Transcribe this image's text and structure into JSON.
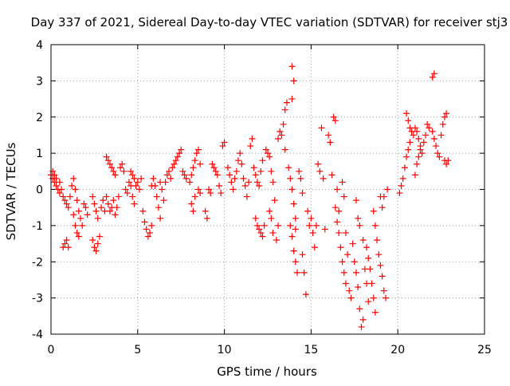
{
  "chart_data": {
    "type": "scatter",
    "title": "Day 337 of 2021, Sidereal Day-to-day VTEC variation (SDTVAR) for receiver stj3",
    "xlabel": "GPS time / hours",
    "ylabel": "SDTVAR / TECUs",
    "xlim": [
      0,
      25
    ],
    "ylim": [
      -4,
      4
    ],
    "xticks": [
      0,
      5,
      10,
      15,
      20,
      25
    ],
    "yticks": [
      -4,
      -3,
      -2,
      -1,
      0,
      1,
      2,
      3,
      4
    ],
    "grid": true,
    "marker": "+",
    "color": "#ff0000",
    "series": [
      {
        "name": "SDTVAR",
        "points": [
          [
            0.0,
            0.4
          ],
          [
            0.1,
            0.3
          ],
          [
            0.2,
            0.2
          ],
          [
            0.3,
            0.1
          ],
          [
            0.4,
            0.0
          ],
          [
            0.5,
            -0.1
          ],
          [
            0.6,
            0.0
          ],
          [
            0.7,
            -0.2
          ],
          [
            0.1,
            0.5
          ],
          [
            0.2,
            0.4
          ],
          [
            0.3,
            0.3
          ],
          [
            0.5,
            0.2
          ],
          [
            0.8,
            -0.3
          ],
          [
            0.9,
            -0.4
          ],
          [
            1.0,
            -0.5
          ],
          [
            0.7,
            -1.6
          ],
          [
            0.8,
            -1.5
          ],
          [
            0.9,
            -1.4
          ],
          [
            1.0,
            -1.6
          ],
          [
            1.1,
            -0.2
          ],
          [
            1.2,
            0.1
          ],
          [
            1.3,
            0.3
          ],
          [
            1.4,
            0.0
          ],
          [
            1.5,
            -0.3
          ],
          [
            1.6,
            -0.6
          ],
          [
            1.7,
            -0.8
          ],
          [
            1.8,
            -1.0
          ],
          [
            1.3,
            -0.7
          ],
          [
            1.4,
            -1.0
          ],
          [
            1.5,
            -1.2
          ],
          [
            1.6,
            -1.3
          ],
          [
            1.9,
            -0.4
          ],
          [
            2.0,
            -0.5
          ],
          [
            2.1,
            -0.7
          ],
          [
            2.4,
            -1.4
          ],
          [
            2.5,
            -1.6
          ],
          [
            2.6,
            -1.7
          ],
          [
            2.7,
            -1.5
          ],
          [
            2.8,
            -1.3
          ],
          [
            2.4,
            -0.2
          ],
          [
            2.5,
            -0.4
          ],
          [
            2.6,
            -0.6
          ],
          [
            2.7,
            -0.8
          ],
          [
            2.9,
            -0.5
          ],
          [
            3.0,
            -0.3
          ],
          [
            3.1,
            -0.6
          ],
          [
            3.2,
            -0.2
          ],
          [
            3.3,
            -0.4
          ],
          [
            3.4,
            -0.6
          ],
          [
            3.5,
            -0.5
          ],
          [
            3.6,
            -0.3
          ],
          [
            3.7,
            -0.7
          ],
          [
            3.8,
            -0.5
          ],
          [
            3.2,
            0.9
          ],
          [
            3.3,
            0.8
          ],
          [
            3.4,
            0.7
          ],
          [
            3.5,
            0.6
          ],
          [
            3.6,
            0.5
          ],
          [
            3.7,
            0.4
          ],
          [
            3.9,
            -0.2
          ],
          [
            4.0,
            0.6
          ],
          [
            4.1,
            0.7
          ],
          [
            4.2,
            0.5
          ],
          [
            4.3,
            0.0
          ],
          [
            4.4,
            -0.1
          ],
          [
            4.5,
            0.2
          ],
          [
            4.6,
            0.1
          ],
          [
            4.7,
            -0.2
          ],
          [
            4.8,
            -0.4
          ],
          [
            4.9,
            0.1
          ],
          [
            4.6,
            0.5
          ],
          [
            4.7,
            0.4
          ],
          [
            4.8,
            0.3
          ],
          [
            5.0,
            0.2
          ],
          [
            5.1,
            0.0
          ],
          [
            5.2,
            0.3
          ],
          [
            5.3,
            -0.6
          ],
          [
            5.4,
            -0.9
          ],
          [
            5.5,
            -1.1
          ],
          [
            5.6,
            -1.3
          ],
          [
            5.7,
            -1.2
          ],
          [
            5.8,
            -1.0
          ],
          [
            5.8,
            0.1
          ],
          [
            5.9,
            0.3
          ],
          [
            6.0,
            0.1
          ],
          [
            6.1,
            -0.2
          ],
          [
            6.2,
            -0.5
          ],
          [
            6.3,
            -0.8
          ],
          [
            6.3,
            0.2
          ],
          [
            6.4,
            0.0
          ],
          [
            6.5,
            -0.3
          ],
          [
            6.6,
            0.2
          ],
          [
            6.7,
            0.4
          ],
          [
            6.8,
            0.5
          ],
          [
            6.9,
            0.3
          ],
          [
            7.0,
            0.6
          ],
          [
            7.1,
            0.7
          ],
          [
            7.2,
            0.8
          ],
          [
            7.3,
            0.9
          ],
          [
            7.4,
            1.0
          ],
          [
            7.5,
            1.1
          ],
          [
            7.6,
            0.5
          ],
          [
            7.7,
            0.4
          ],
          [
            7.8,
            0.3
          ],
          [
            8.0,
            0.2
          ],
          [
            8.1,
            0.4
          ],
          [
            8.2,
            0.6
          ],
          [
            8.3,
            0.8
          ],
          [
            8.4,
            1.0
          ],
          [
            8.5,
            1.1
          ],
          [
            8.6,
            0.7
          ],
          [
            8.1,
            -0.4
          ],
          [
            8.2,
            -0.6
          ],
          [
            8.3,
            -0.2
          ],
          [
            8.5,
            0.0
          ],
          [
            8.6,
            -0.1
          ],
          [
            8.9,
            -0.6
          ],
          [
            9.0,
            -0.8
          ],
          [
            9.1,
            0.0
          ],
          [
            9.2,
            -0.1
          ],
          [
            9.3,
            0.7
          ],
          [
            9.4,
            0.6
          ],
          [
            9.5,
            0.5
          ],
          [
            9.6,
            0.4
          ],
          [
            9.7,
            0.1
          ],
          [
            9.8,
            -0.1
          ],
          [
            9.9,
            1.2
          ],
          [
            10.0,
            1.3
          ],
          [
            10.2,
            0.6
          ],
          [
            10.3,
            0.4
          ],
          [
            10.4,
            0.2
          ],
          [
            10.5,
            0.0
          ],
          [
            10.6,
            0.3
          ],
          [
            10.7,
            0.5
          ],
          [
            10.8,
            0.8
          ],
          [
            10.9,
            1.0
          ],
          [
            11.0,
            0.7
          ],
          [
            11.1,
            0.3
          ],
          [
            11.2,
            0.1
          ],
          [
            11.3,
            -0.2
          ],
          [
            11.4,
            0.2
          ],
          [
            11.5,
            1.2
          ],
          [
            11.6,
            1.4
          ],
          [
            11.7,
            0.6
          ],
          [
            11.8,
            0.4
          ],
          [
            11.9,
            0.2
          ],
          [
            12.0,
            0.1
          ],
          [
            12.1,
            0.5
          ],
          [
            12.2,
            0.8
          ],
          [
            11.8,
            -0.8
          ],
          [
            11.9,
            -1.0
          ],
          [
            12.0,
            -1.1
          ],
          [
            12.1,
            -1.2
          ],
          [
            12.2,
            -1.3
          ],
          [
            12.3,
            -1.0
          ],
          [
            12.4,
            1.1
          ],
          [
            12.5,
            1.0
          ],
          [
            12.6,
            0.9
          ],
          [
            12.7,
            0.5
          ],
          [
            12.8,
            0.2
          ],
          [
            12.9,
            -0.3
          ],
          [
            12.6,
            -0.6
          ],
          [
            12.7,
            -0.8
          ],
          [
            12.8,
            -1.2
          ],
          [
            13.0,
            -1.4
          ],
          [
            13.1,
            -1.0
          ],
          [
            13.1,
            1.4
          ],
          [
            13.2,
            1.6
          ],
          [
            13.3,
            1.5
          ],
          [
            13.4,
            1.8
          ],
          [
            13.5,
            2.2
          ],
          [
            13.6,
            2.4
          ],
          [
            13.5,
            1.1
          ],
          [
            13.7,
            0.6
          ],
          [
            13.8,
            0.3
          ],
          [
            13.9,
            0.0
          ],
          [
            14.0,
            -0.4
          ],
          [
            14.1,
            -0.8
          ],
          [
            13.9,
            3.4
          ],
          [
            14.0,
            3.0
          ],
          [
            13.9,
            2.5
          ],
          [
            13.8,
            -1.0
          ],
          [
            13.9,
            -1.3
          ],
          [
            14.0,
            -1.7
          ],
          [
            14.1,
            -2.0
          ],
          [
            14.2,
            -2.3
          ],
          [
            14.1,
            -1.1
          ],
          [
            14.3,
            0.5
          ],
          [
            14.4,
            0.3
          ],
          [
            14.5,
            -0.1
          ],
          [
            14.5,
            -1.8
          ],
          [
            14.6,
            -2.3
          ],
          [
            14.7,
            -2.9
          ],
          [
            14.8,
            -0.6
          ],
          [
            14.9,
            -1.0
          ],
          [
            15.0,
            -0.8
          ],
          [
            15.1,
            -1.2
          ],
          [
            15.2,
            -1.6
          ],
          [
            15.3,
            -1.0
          ],
          [
            15.4,
            0.7
          ],
          [
            15.5,
            0.5
          ],
          [
            15.6,
            1.7
          ],
          [
            15.7,
            0.3
          ],
          [
            15.8,
            -1.1
          ],
          [
            16.0,
            1.5
          ],
          [
            16.1,
            1.3
          ],
          [
            16.2,
            0.4
          ],
          [
            16.3,
            2.0
          ],
          [
            16.4,
            1.9
          ],
          [
            16.5,
            0.0
          ],
          [
            16.6,
            -0.6
          ],
          [
            16.4,
            -0.5
          ],
          [
            16.5,
            -0.9
          ],
          [
            16.6,
            -1.2
          ],
          [
            16.7,
            -1.6
          ],
          [
            16.8,
            -2.0
          ],
          [
            16.9,
            -2.3
          ],
          [
            17.0,
            -2.6
          ],
          [
            16.8,
            0.2
          ],
          [
            16.9,
            -0.2
          ],
          [
            17.0,
            -1.2
          ],
          [
            17.1,
            -1.8
          ],
          [
            17.2,
            -2.8
          ],
          [
            17.3,
            -3.0
          ],
          [
            17.4,
            -1.5
          ],
          [
            17.5,
            -2.0
          ],
          [
            17.6,
            -2.3
          ],
          [
            17.7,
            -2.7
          ],
          [
            17.8,
            -3.3
          ],
          [
            17.9,
            -3.8
          ],
          [
            18.0,
            -3.6
          ],
          [
            17.6,
            -0.3
          ],
          [
            17.7,
            -0.8
          ],
          [
            17.8,
            -1.0
          ],
          [
            18.0,
            -1.4
          ],
          [
            18.1,
            -2.2
          ],
          [
            18.2,
            -2.6
          ],
          [
            18.3,
            -3.1
          ],
          [
            18.2,
            -1.6
          ],
          [
            18.3,
            -1.9
          ],
          [
            18.4,
            -2.2
          ],
          [
            18.5,
            -2.6
          ],
          [
            18.6,
            -3.0
          ],
          [
            18.7,
            -3.4
          ],
          [
            18.6,
            -0.6
          ],
          [
            18.7,
            -1.0
          ],
          [
            18.8,
            -1.4
          ],
          [
            18.9,
            -1.8
          ],
          [
            19.0,
            -2.1
          ],
          [
            19.1,
            -2.4
          ],
          [
            19.0,
            -0.2
          ],
          [
            19.1,
            -0.5
          ],
          [
            19.2,
            -0.2
          ],
          [
            19.2,
            -2.8
          ],
          [
            19.3,
            -3.0
          ],
          [
            19.4,
            0.0
          ],
          [
            20.1,
            -0.1
          ],
          [
            20.2,
            0.1
          ],
          [
            20.3,
            0.3
          ],
          [
            20.4,
            0.6
          ],
          [
            20.5,
            0.9
          ],
          [
            20.6,
            1.1
          ],
          [
            20.7,
            1.3
          ],
          [
            20.5,
            2.1
          ],
          [
            20.6,
            1.9
          ],
          [
            20.7,
            1.7
          ],
          [
            20.8,
            1.6
          ],
          [
            20.9,
            1.5
          ],
          [
            21.0,
            1.7
          ],
          [
            21.1,
            1.6
          ],
          [
            21.2,
            1.4
          ],
          [
            21.3,
            1.2
          ],
          [
            21.4,
            1.0
          ],
          [
            21.5,
            1.3
          ],
          [
            21.6,
            1.5
          ],
          [
            21.7,
            1.8
          ],
          [
            21.8,
            1.7
          ],
          [
            21.0,
            0.4
          ],
          [
            21.1,
            0.7
          ],
          [
            21.2,
            0.9
          ],
          [
            21.3,
            1.1
          ],
          [
            22.0,
            3.1
          ],
          [
            22.1,
            3.2
          ],
          [
            22.0,
            1.6
          ],
          [
            22.1,
            1.4
          ],
          [
            22.2,
            1.2
          ],
          [
            22.3,
            1.0
          ],
          [
            22.4,
            0.9
          ],
          [
            22.5,
            1.5
          ],
          [
            22.6,
            1.8
          ],
          [
            22.7,
            2.0
          ],
          [
            22.8,
            2.1
          ],
          [
            22.7,
            0.8
          ],
          [
            22.8,
            0.7
          ],
          [
            22.9,
            0.8
          ]
        ]
      }
    ]
  }
}
